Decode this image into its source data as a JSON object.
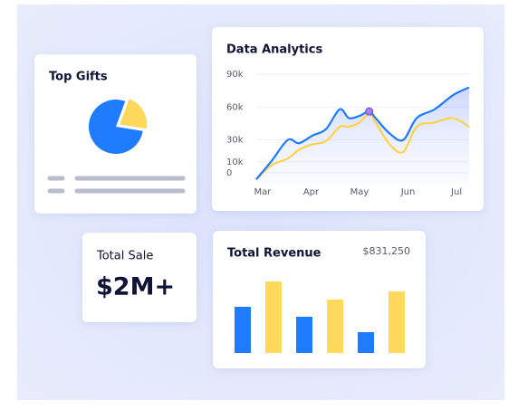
{
  "top_gifts": {
    "title": "Top Gifts",
    "chart_data": {
      "type": "pie",
      "values": [
        78,
        22
      ],
      "colors": [
        "#1f7bff",
        "#ffd95c"
      ]
    }
  },
  "analytics": {
    "chart_data": {
      "type": "line",
      "title": "Data Analytics",
      "x": [
        -0.13,
        0.19,
        0.52,
        0.75,
        1.03,
        1.31,
        1.59,
        1.78,
        2.0,
        2.2,
        2.33,
        2.62,
        2.9,
        3.18,
        3.55,
        3.93,
        4.26
      ],
      "xlim": [
        -0.13,
        4.26
      ],
      "xticks": [
        {
          "value": 0,
          "label": "Mar"
        },
        {
          "value": 1,
          "label": "Apr"
        },
        {
          "value": 2,
          "label": "May"
        },
        {
          "value": 3,
          "label": "Jun"
        },
        {
          "value": 4,
          "label": "Jul"
        }
      ],
      "ylim": [
        -10000,
        95000
      ],
      "yticks": [
        0,
        {
          "value": 10000,
          "label": "10k"
        },
        {
          "value": 30000,
          "label": "30k"
        },
        {
          "value": 60000,
          "label": "60k"
        },
        {
          "value": 90000,
          "label": "90k"
        }
      ],
      "grid": true,
      "series": [
        {
          "color": "#1f7bff",
          "values": [
            -6000,
            11000,
            30000,
            27000,
            34000,
            40000,
            58000,
            50000,
            52000,
            56000,
            50000,
            36000,
            30000,
            50000,
            58000,
            71000,
            78000
          ]
        },
        {
          "color": "#ffd24d",
          "values": [
            -6000,
            7000,
            13000,
            21000,
            26000,
            29000,
            42000,
            42000,
            46000,
            54000,
            46000,
            26000,
            19000,
            42000,
            46000,
            50000,
            42000
          ]
        }
      ],
      "highlight": {
        "x": 2.2,
        "y": 56000,
        "color": "#a77bff"
      }
    }
  },
  "total_sale": {
    "label": "Total Sale",
    "value": "$2M+"
  },
  "revenue": {
    "chart_data": {
      "type": "bar",
      "title": "Total Revenue",
      "subtitle": "$831,250",
      "values": [
        51,
        79,
        40,
        59,
        23,
        68
      ],
      "colors": [
        "#1f7bff",
        "#ffd95c",
        "#1f7bff",
        "#ffd95c",
        "#1f7bff",
        "#ffd95c"
      ]
    }
  }
}
